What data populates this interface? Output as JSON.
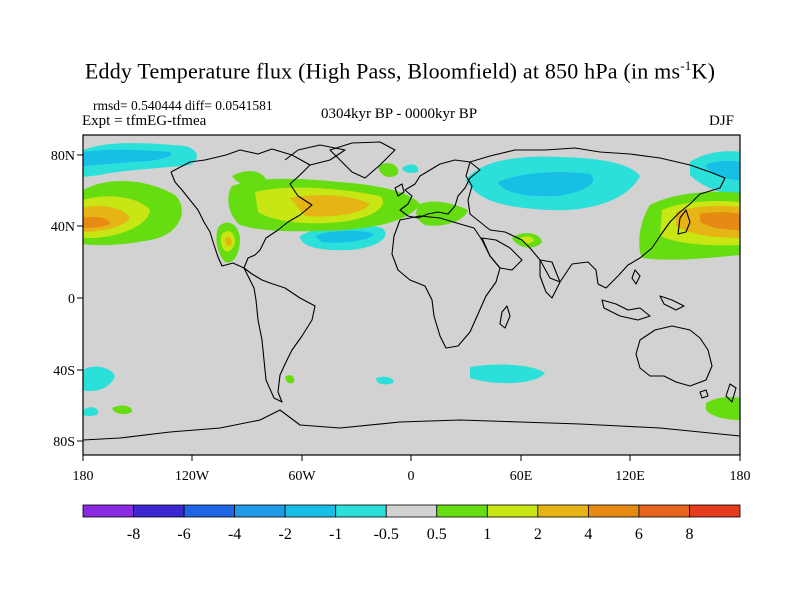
{
  "title": {
    "main": "Eddy Temperature flux (High Pass, Bloomfield) at 850 hPa (in ms",
    "sup": "-1",
    "tail": "K)"
  },
  "stats": {
    "rmsd_diff": "rmsd= 0.540444  diff= 0.0541581",
    "expt": "Expt = tfmEG-tfmea",
    "period": "0304kyr BP - 0000kyr BP",
    "season": "DJF"
  },
  "axes": {
    "lat_labels": [
      "80N",
      "40N",
      "0",
      "40S",
      "80S"
    ],
    "lon_labels": [
      "180",
      "120W",
      "60W",
      "0",
      "60E",
      "120E",
      "180"
    ]
  },
  "colorbar": {
    "labels": [
      "-8",
      "-6",
      "-4",
      "-2",
      "-1",
      "-0.5",
      "0.5",
      "1",
      "2",
      "4",
      "6",
      "8"
    ],
    "colors": [
      "#8a2be2",
      "#3c28d2",
      "#1f66e6",
      "#1e9ae6",
      "#17bfe6",
      "#2ae0d9",
      "#d2d2d2",
      "#66dd11",
      "#c8e614",
      "#e6b414",
      "#e68a14",
      "#e6641e",
      "#e63c1e"
    ]
  },
  "colors": {
    "land_sea_background": "#d2d2d2",
    "coastline": "#000000"
  }
}
